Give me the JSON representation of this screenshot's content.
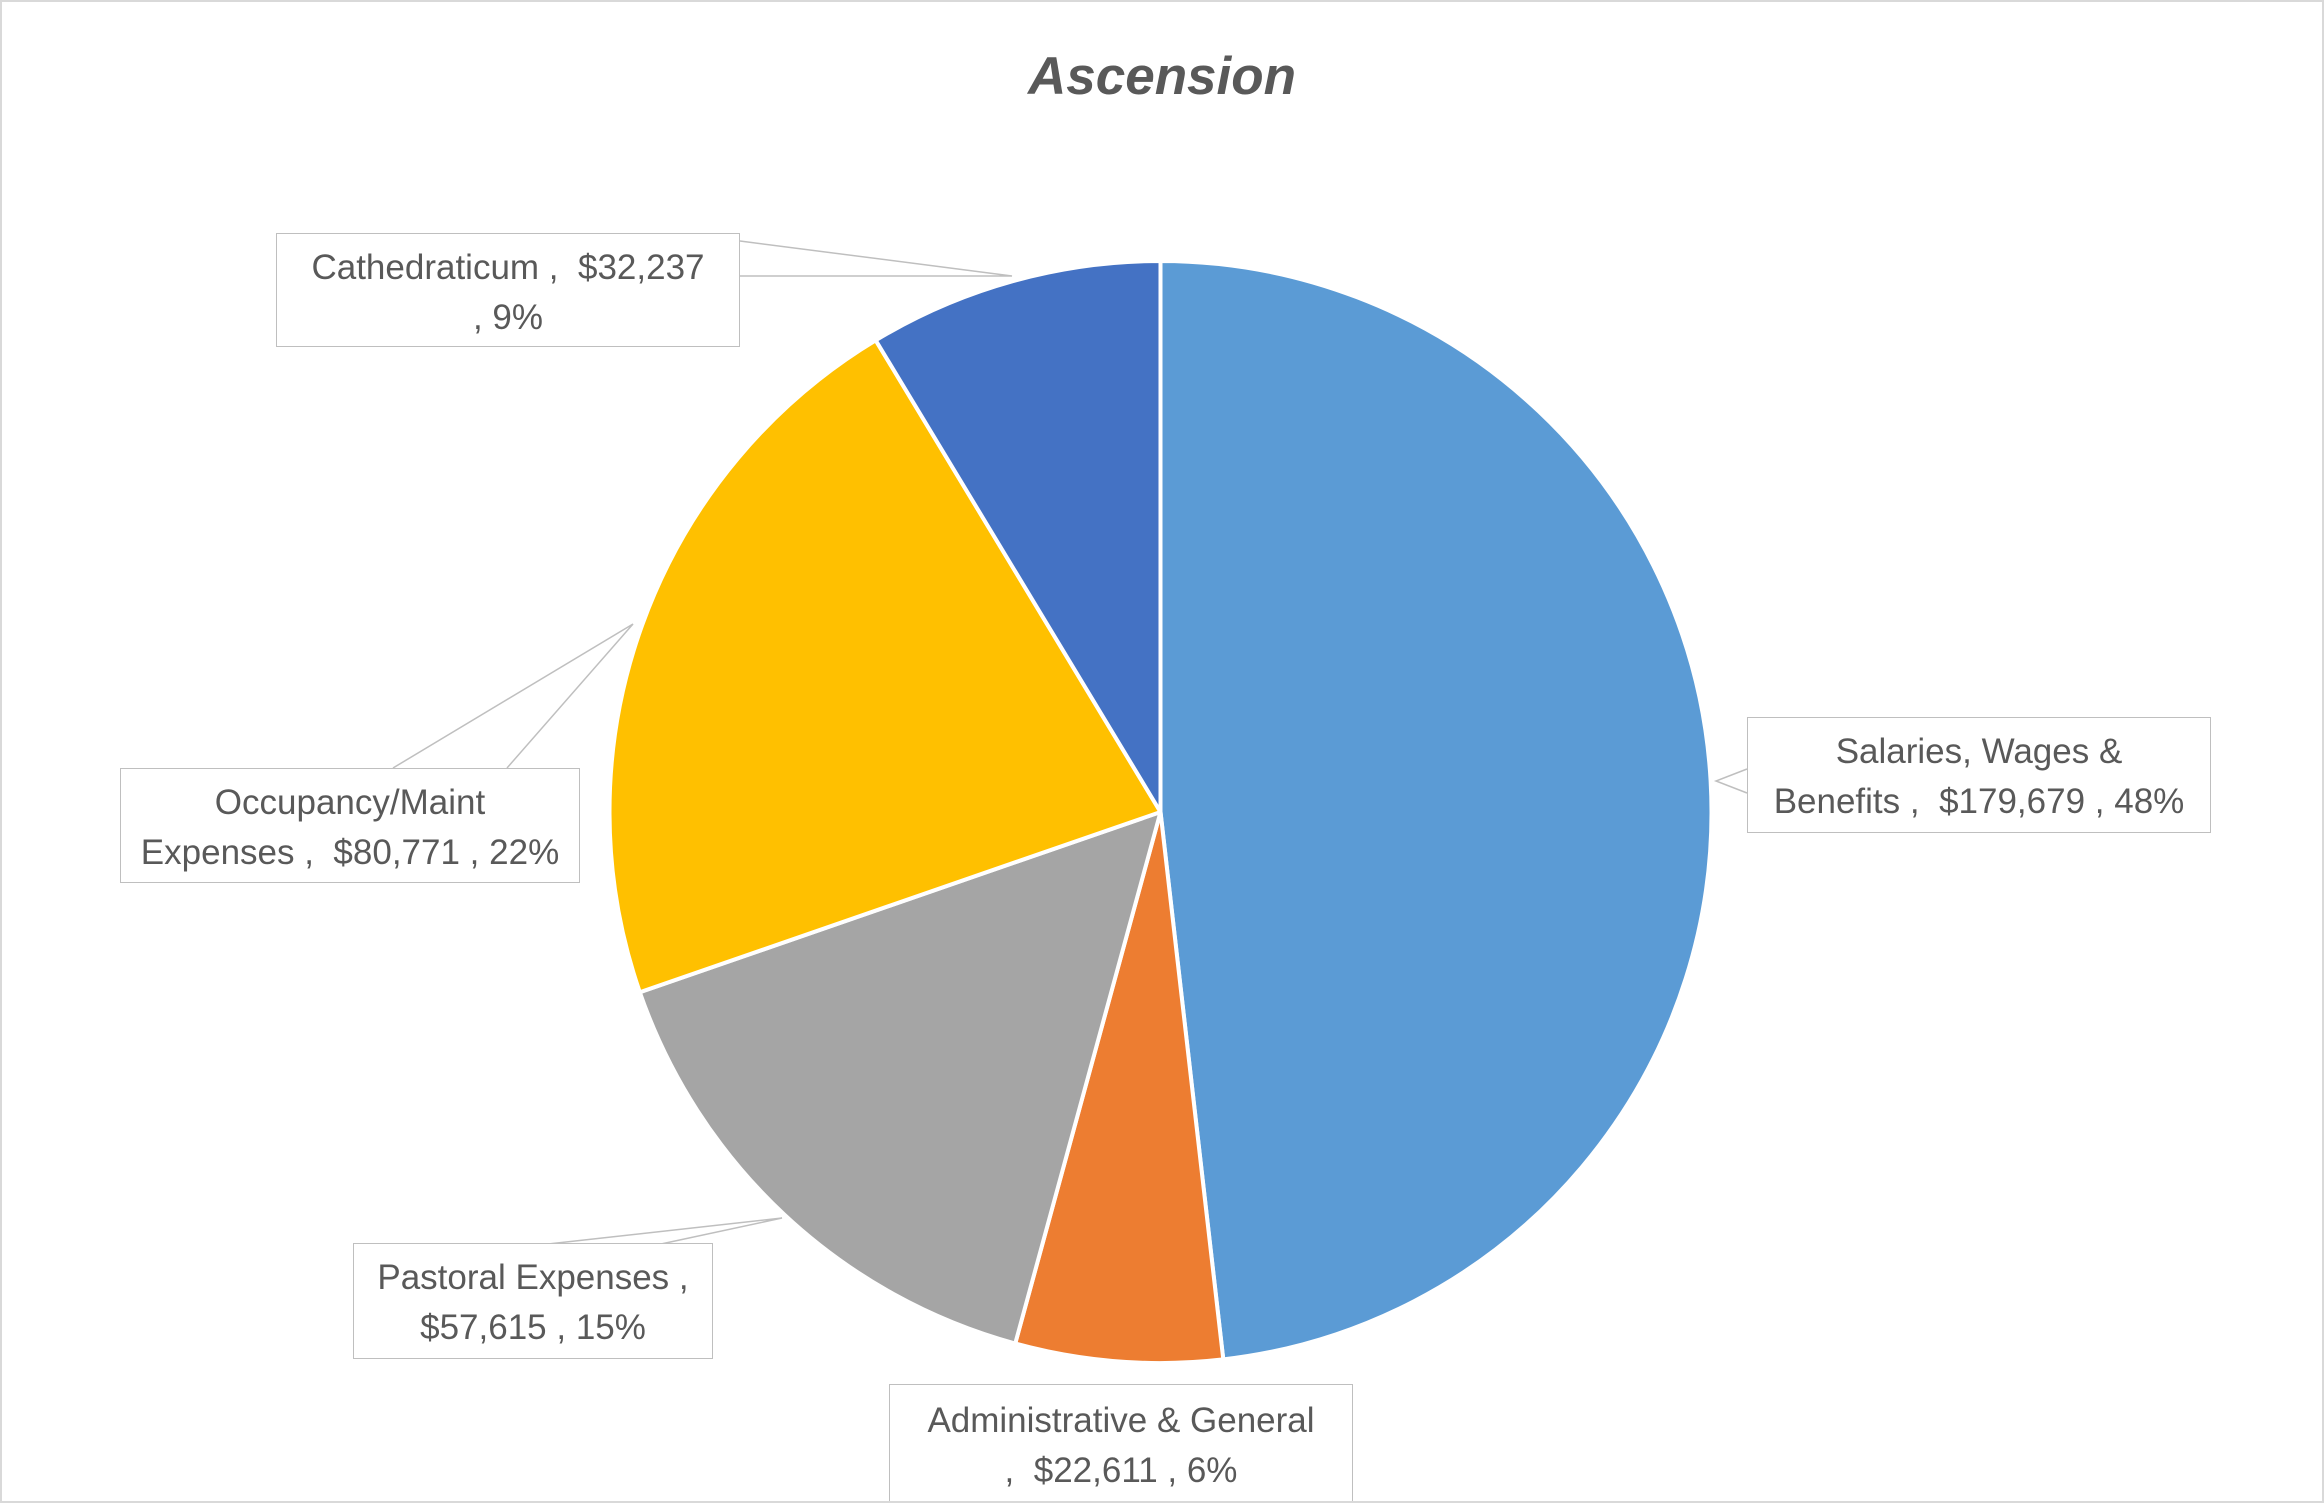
{
  "chart_data": {
    "type": "pie",
    "title": "Ascension",
    "label_separators": [
      " ,  ",
      " , "
    ],
    "slices": [
      {
        "category": "Salaries, Wages & Benefits",
        "value": 179679,
        "value_label": "$179,679",
        "percent_label": "48%",
        "color": "#5B9BD5"
      },
      {
        "category": "Administrative & General",
        "value": 22611,
        "value_label": "$22,611",
        "percent_label": "6%",
        "color": "#ED7D31"
      },
      {
        "category": "Pastoral Expenses",
        "value": 57615,
        "value_label": "$57,615",
        "percent_label": "15%",
        "color": "#A5A5A5"
      },
      {
        "category": "Occupancy/Maint Expenses",
        "value": 80771,
        "value_label": "$80,771",
        "percent_label": "22%",
        "color": "#FFC000"
      },
      {
        "category": "Cathedraticum",
        "value": 32237,
        "value_label": "$32,237",
        "percent_label": "9%",
        "color": "#4472C4"
      }
    ],
    "legend": "none"
  },
  "colors": {
    "title": "#595959",
    "label_text": "#595959",
    "label_border": "#BFBFBF",
    "slice_border": "#FFFFFF",
    "chart_border": "#D9D9D9"
  }
}
